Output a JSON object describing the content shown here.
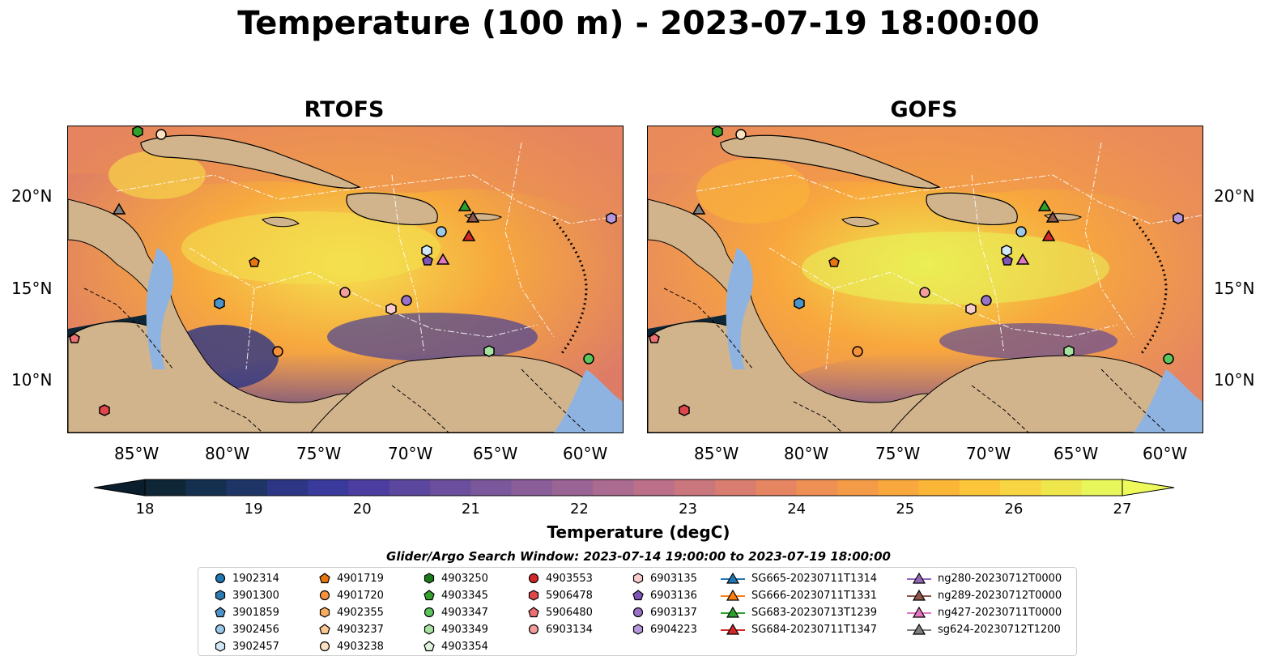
{
  "title": "Temperature (100 m) - 2023-07-19 18:00:00",
  "panels": [
    {
      "title": "RTOFS"
    },
    {
      "title": "GOFS"
    }
  ],
  "axes": {
    "lat_ticks": [
      "20°N",
      "15°N",
      "10°N"
    ],
    "lon_ticks": [
      "85°W",
      "80°W",
      "75°W",
      "70°W",
      "65°W",
      "60°W"
    ]
  },
  "colorbar": {
    "label": "Temperature (degC)",
    "ticks": [
      "18",
      "19",
      "20",
      "21",
      "22",
      "23",
      "24",
      "25",
      "26",
      "27"
    ],
    "colors": [
      "#0f2637",
      "#152f4f",
      "#1e3566",
      "#2c3684",
      "#3a3a9c",
      "#4c3ea1",
      "#5c479f",
      "#6b4f9e",
      "#7a589b",
      "#8a5e98",
      "#9a6495",
      "#ab6a90",
      "#bb6f88",
      "#ca767d",
      "#d87d70",
      "#e58562",
      "#ee8f54",
      "#f49b47",
      "#f8a83d",
      "#fbb537",
      "#fcc63a",
      "#f8d543",
      "#efe64e",
      "#e7f65b"
    ]
  },
  "search_window": "Glider/Argo Search Window: 2023-07-14 19:00:00 to 2023-07-19 18:00:00",
  "legend_columns": [
    [
      {
        "label": "1902314",
        "marker": "circle",
        "color": "#1f77b4"
      },
      {
        "label": "3901300",
        "marker": "hexagon",
        "color": "#2d7ab0"
      },
      {
        "label": "3901859",
        "marker": "pentagon",
        "color": "#4b93c8"
      },
      {
        "label": "3902456",
        "marker": "circle",
        "color": "#9ac8e8"
      },
      {
        "label": "3902457",
        "marker": "hexagon",
        "color": "#d2e8f6"
      }
    ],
    [
      {
        "label": "4901719",
        "marker": "pentagon",
        "color": "#e8760e"
      },
      {
        "label": "4901720",
        "marker": "circle",
        "color": "#f7913a"
      },
      {
        "label": "4902355",
        "marker": "hexagon",
        "color": "#fbab5e"
      },
      {
        "label": "4903237",
        "marker": "pentagon",
        "color": "#fcc890"
      },
      {
        "label": "4903238",
        "marker": "circle",
        "color": "#fde2c2"
      }
    ],
    [
      {
        "label": "4903250",
        "marker": "hexagon",
        "color": "#1c7a1c"
      },
      {
        "label": "4903345",
        "marker": "pentagon",
        "color": "#33a02c"
      },
      {
        "label": "4903347",
        "marker": "circle",
        "color": "#5cc55c"
      },
      {
        "label": "4903349",
        "marker": "hexagon",
        "color": "#a6e3a1"
      },
      {
        "label": "4903354",
        "marker": "pentagon",
        "color": "#def5dc"
      }
    ],
    [
      {
        "label": "4903553",
        "marker": "circle",
        "color": "#d62728"
      },
      {
        "label": "5906478",
        "marker": "hexagon",
        "color": "#e0474a"
      },
      {
        "label": "5906480",
        "marker": "pentagon",
        "color": "#ec6f72"
      },
      {
        "label": "6903134",
        "marker": "circle",
        "color": "#f39d9d"
      }
    ],
    [
      {
        "label": "6903135",
        "marker": "hexagon",
        "color": "#f8cccc"
      },
      {
        "label": "6903136",
        "marker": "pentagon",
        "color": "#7f55b8"
      },
      {
        "label": "6903137",
        "marker": "circle",
        "color": "#9a72c9"
      },
      {
        "label": "6904223",
        "marker": "hexagon",
        "color": "#b497dc"
      }
    ],
    [
      {
        "label": "SG665-20230711T1314",
        "marker": "triangle",
        "color": "#1f77b4"
      },
      {
        "label": "SG666-20230711T1331",
        "marker": "triangle",
        "color": "#ff7f0e"
      },
      {
        "label": "SG683-20230713T1239",
        "marker": "triangle",
        "color": "#2ca02c"
      },
      {
        "label": "SG684-20230711T1347",
        "marker": "triangle",
        "color": "#d62728"
      }
    ],
    [
      {
        "label": "ng280-20230712T0000",
        "marker": "triangle",
        "color": "#9467bd"
      },
      {
        "label": "ng289-20230712T0000",
        "marker": "triangle",
        "color": "#8c564b"
      },
      {
        "label": "ng427-20230711T0000",
        "marker": "triangle",
        "color": "#e377c2"
      },
      {
        "label": "sg624-20230712T1200",
        "marker": "triangle",
        "color": "#7f7f7f"
      }
    ]
  ],
  "colors": {
    "land": "#d2b48c",
    "shallow_water": "#8fb3e0"
  }
}
